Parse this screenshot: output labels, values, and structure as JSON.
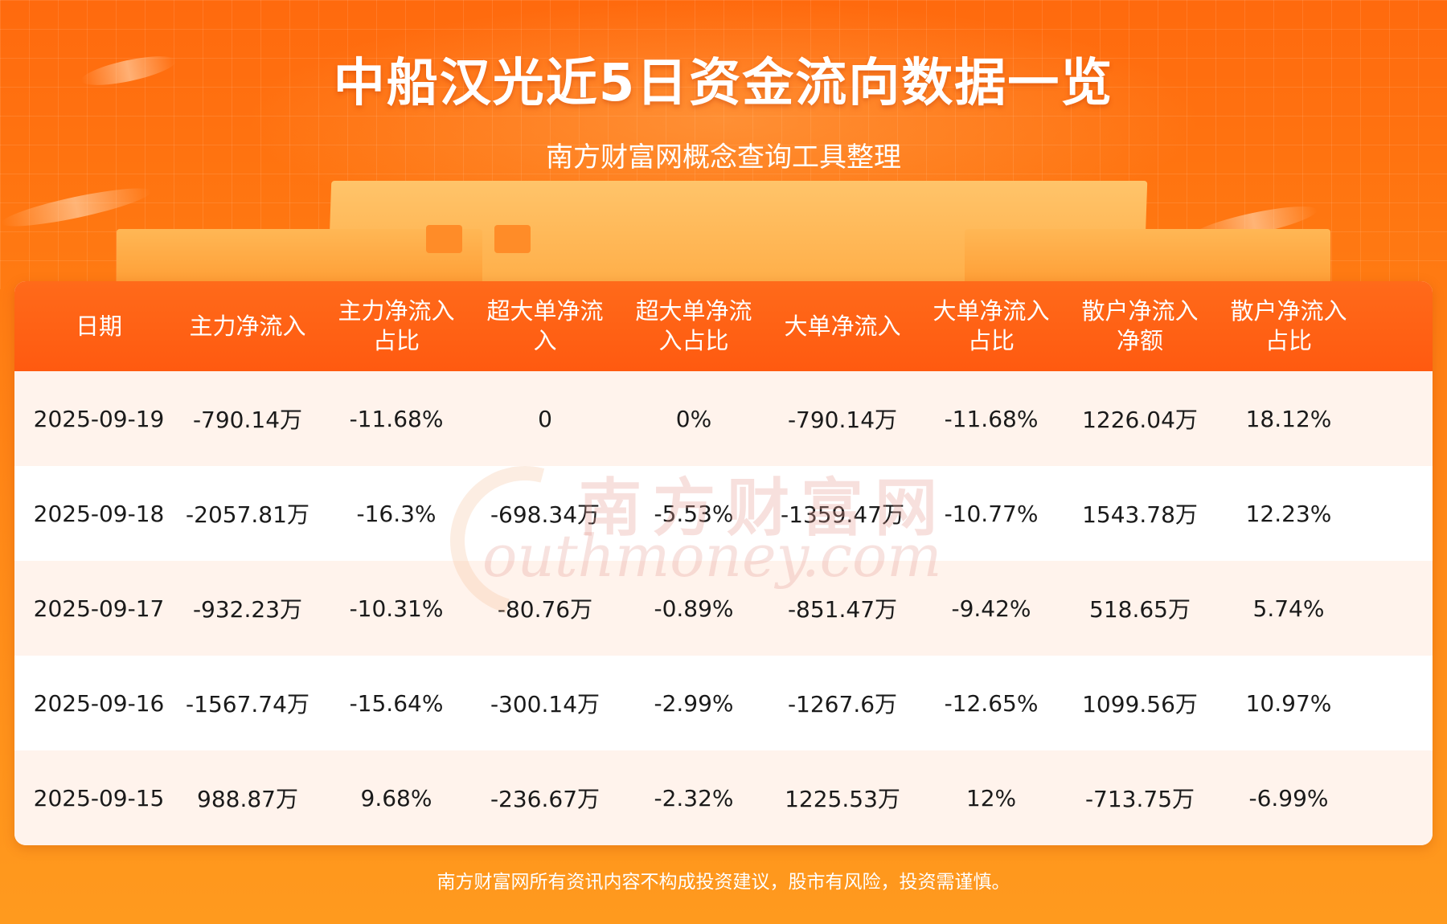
{
  "header": {
    "title": "中船汉光近5日资金流向数据一览",
    "subtitle": "南方财富网概念查询工具整理"
  },
  "table": {
    "columns": [
      [
        "日期"
      ],
      [
        "主力净流入"
      ],
      [
        "主力净流入",
        "占比"
      ],
      [
        "超大单净流",
        "入"
      ],
      [
        "超大单净流",
        "入占比"
      ],
      [
        "大单净流入"
      ],
      [
        "大单净流入",
        "占比"
      ],
      [
        "散户净流入",
        "净额"
      ],
      [
        "散户净流入",
        "占比"
      ]
    ],
    "rows": [
      [
        "2025-09-19",
        "-790.14万",
        "-11.68%",
        "0",
        "0%",
        "-790.14万",
        "-11.68%",
        "1226.04万",
        "18.12%"
      ],
      [
        "2025-09-18",
        "-2057.81万",
        "-16.3%",
        "-698.34万",
        "-5.53%",
        "-1359.47万",
        "-10.77%",
        "1543.78万",
        "12.23%"
      ],
      [
        "2025-09-17",
        "-932.23万",
        "-10.31%",
        "-80.76万",
        "-0.89%",
        "-851.47万",
        "-9.42%",
        "518.65万",
        "5.74%"
      ],
      [
        "2025-09-16",
        "-1567.74万",
        "-15.64%",
        "-300.14万",
        "-2.99%",
        "-1267.6万",
        "-12.65%",
        "1099.56万",
        "10.97%"
      ],
      [
        "2025-09-15",
        "988.87万",
        "9.68%",
        "-236.67万",
        "-2.32%",
        "1225.53万",
        "12%",
        "-713.75万",
        "-6.99%"
      ]
    ]
  },
  "watermark": {
    "cn": "南方财富网",
    "en": "outhmoney.com"
  },
  "footer": {
    "disclaimer": "南方财富网所有资讯内容不构成投资建议，股市有风险，投资需谨慎。"
  },
  "colors": {
    "header_bg": "#ff5a10",
    "row_alt_bg": "#fff3ec",
    "page_bg": "#ff7a12"
  }
}
